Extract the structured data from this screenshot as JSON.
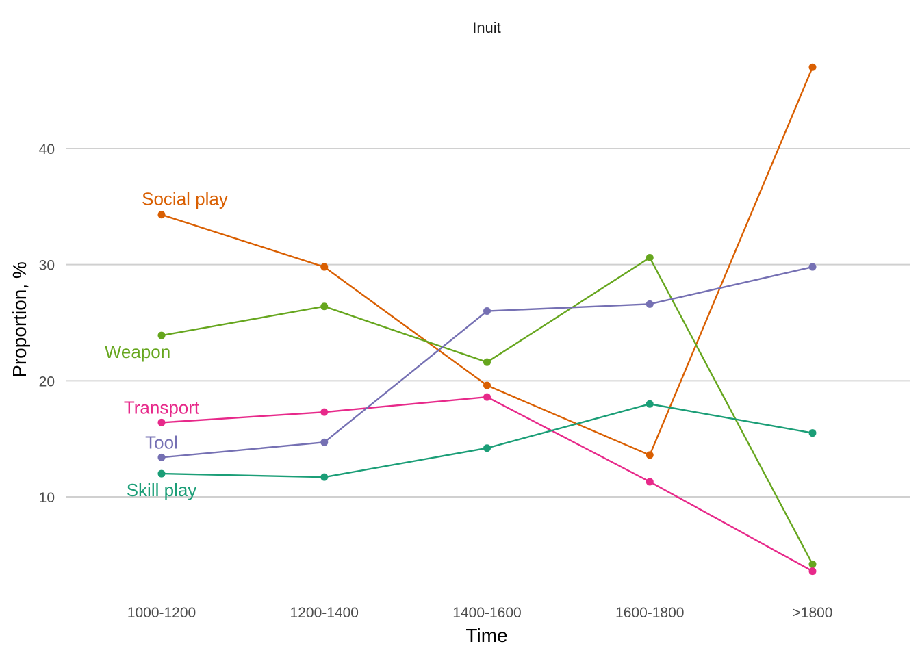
{
  "chart_data": {
    "type": "line",
    "title": "Inuit",
    "xlabel": "Time",
    "ylabel": "Proportion, %",
    "categories": [
      "1000-1200",
      "1200-1400",
      "1400-1600",
      "1600-1800",
      ">1800"
    ],
    "ylim": [
      2,
      50
    ],
    "yticks": [
      10,
      20,
      30,
      40
    ],
    "grid": "horizontal major lines",
    "legend": "direct labels at left of lines",
    "series": [
      {
        "name": "Social play",
        "color": "#D95F02",
        "values": [
          34.3,
          29.8,
          19.6,
          13.6,
          47.0
        ]
      },
      {
        "name": "Weapon",
        "color": "#66A61E",
        "values": [
          23.9,
          26.4,
          21.6,
          30.6,
          4.2
        ]
      },
      {
        "name": "Transport",
        "color": "#E7298A",
        "values": [
          16.4,
          17.3,
          18.6,
          11.3,
          3.6
        ]
      },
      {
        "name": "Tool",
        "color": "#7570B3",
        "values": [
          13.4,
          14.7,
          26.0,
          26.6,
          29.8
        ]
      },
      {
        "name": "Skill play",
        "color": "#1B9E77",
        "values": [
          12.0,
          11.7,
          14.2,
          18.0,
          15.5
        ]
      }
    ]
  }
}
